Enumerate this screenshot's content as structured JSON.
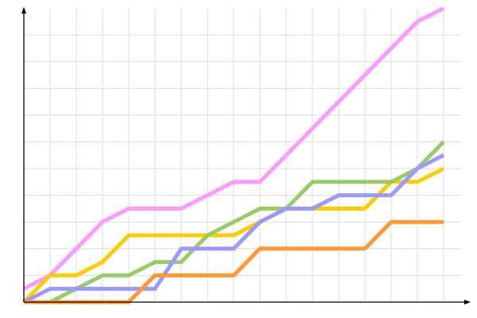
{
  "chart_data": {
    "type": "line",
    "title": "",
    "xlabel": "",
    "ylabel": "",
    "x": [
      0,
      1,
      2,
      3,
      4,
      5,
      6,
      7,
      8,
      9,
      10,
      11,
      12,
      13,
      14,
      15,
      16
    ],
    "xlim": [
      0,
      17.5
    ],
    "ylim": [
      0,
      11
    ],
    "grid": true,
    "axis_arrows": true,
    "series": [
      {
        "color": "#ff99ff",
        "values": [
          0.5,
          1,
          2,
          3,
          3.5,
          3.5,
          3.5,
          4,
          4.5,
          4.5,
          5.5,
          6.5,
          7.5,
          8.5,
          9.5,
          10.5,
          11
        ]
      },
      {
        "color": "#ffcc00",
        "values": [
          0,
          1,
          1,
          1.5,
          2.5,
          2.5,
          2.5,
          2.5,
          2.5,
          3,
          3.5,
          3.5,
          3.5,
          3.5,
          4.5,
          4.5,
          5
        ]
      },
      {
        "color": "#99cc66",
        "values": [
          0,
          0,
          0.5,
          1,
          1,
          1.5,
          1.5,
          2.5,
          3,
          3.5,
          3.5,
          4.5,
          4.5,
          4.5,
          4.5,
          5,
          6
        ]
      },
      {
        "color": "#9999ff",
        "values": [
          0,
          0.5,
          0.5,
          0.5,
          0.5,
          0.5,
          2,
          2,
          2,
          3,
          3.5,
          3.5,
          4,
          4,
          4,
          5,
          5.5
        ]
      },
      {
        "color": "#ff9933",
        "values": [
          0,
          0,
          0,
          0,
          0,
          1,
          1,
          1,
          1,
          2,
          2,
          2,
          2,
          2,
          3,
          3,
          3
        ]
      }
    ]
  }
}
